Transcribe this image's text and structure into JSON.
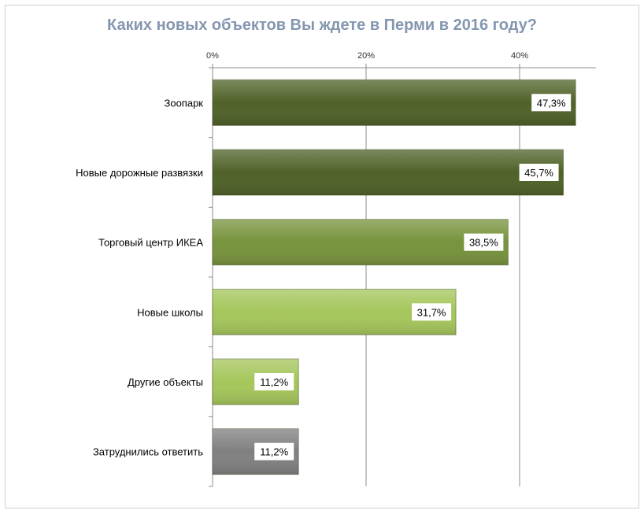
{
  "chart_data": {
    "type": "bar",
    "orientation": "horizontal",
    "title": "Каких новых объектов Вы ждете в Перми в 2016 году?",
    "categories": [
      "Зоопарк",
      "Новые дорожные развязки",
      "Торговый центр ИКЕА",
      "Новые школы",
      "Другие объекты",
      "Затруднились ответить"
    ],
    "values": [
      47.3,
      45.7,
      38.5,
      31.7,
      11.2,
      11.2
    ],
    "value_labels": [
      "47,3%",
      "45,7%",
      "38,5%",
      "31,7%",
      "11,2%",
      "11,2%"
    ],
    "xlim": [
      0,
      50
    ],
    "x_ticks": [
      0,
      20,
      40
    ],
    "x_tick_labels": [
      "0%",
      "20%",
      "40%"
    ],
    "x_axis_position": "top",
    "grid": true,
    "legend": "none",
    "bar_colors": [
      "#4f6228",
      "#4f6228",
      "#77933c",
      "#a5c65b",
      "#a5c65b",
      "#808080"
    ]
  }
}
